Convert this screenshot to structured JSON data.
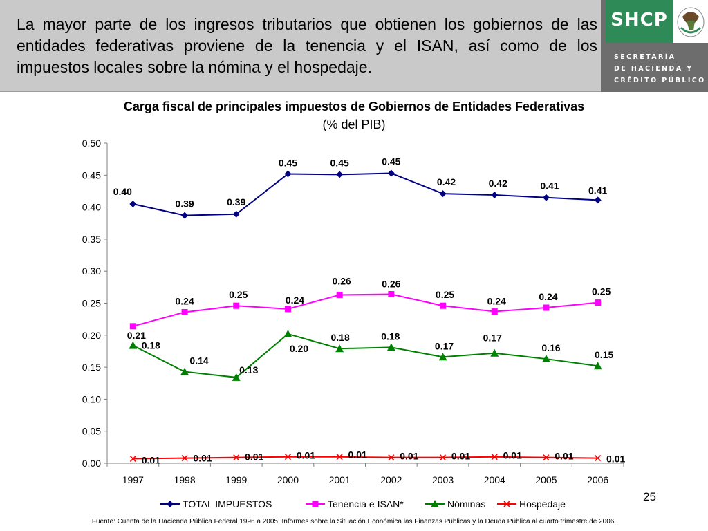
{
  "banner": {
    "text": "La mayor parte de los ingresos tributarios que obtienen los gobiernos de las entidades federativas proviene de la tenencia y el ISAN, así como de los impuestos locales sobre la nómina y el hospedaje."
  },
  "logo": {
    "acronym": "SHCP",
    "line1": "SECRETARÍA",
    "line2": "DE HACIENDA Y",
    "line3": "CRÉDITO PÚBLICO",
    "seal_icon": "mexican-coat-of-arms-icon",
    "green": "#2e8b57"
  },
  "page_number": "25",
  "source_note": "Fuente: Cuenta de la Hacienda Pública Federal 1996 a 2005;  Informes sobre la Situación Económica las Finanzas Públicas y la Deuda Pública al cuarto trimestre de 2006.",
  "chart_data": {
    "type": "line",
    "title": "Carga fiscal de principales impuestos de Gobiernos de Entidades Federativas",
    "subtitle": "(% del PIB)",
    "categories": [
      "1997",
      "1998",
      "1999",
      "2000",
      "2001",
      "2002",
      "2003",
      "2004",
      "2005",
      "2006"
    ],
    "ylim": [
      0,
      0.5
    ],
    "yticks": [
      "0.00",
      "0.05",
      "0.10",
      "0.15",
      "0.20",
      "0.25",
      "0.30",
      "0.35",
      "0.40",
      "0.45",
      "0.50"
    ],
    "legend_position": "bottom",
    "series": [
      {
        "name": "TOTAL IMPUESTOS",
        "color": "#000080",
        "marker": "diamond",
        "values": [
          0.405,
          0.387,
          0.389,
          0.452,
          0.451,
          0.453,
          0.421,
          0.419,
          0.415,
          0.411
        ],
        "labels": [
          "0.40",
          "0.39",
          "0.39",
          "0.45",
          "0.45",
          "0.45",
          "0.42",
          "0.42",
          "0.41",
          "0.41"
        ]
      },
      {
        "name": "Tenencia e ISAN*",
        "color": "#ff00ff",
        "marker": "square",
        "values": [
          0.214,
          0.236,
          0.246,
          0.241,
          0.263,
          0.264,
          0.246,
          0.237,
          0.243,
          0.251
        ],
        "labels": [
          "0.21",
          "0.24",
          "0.25",
          "0.24",
          "0.26",
          "0.26",
          "0.25",
          "0.24",
          "0.24",
          "0.25"
        ]
      },
      {
        "name": "Nóminas",
        "color": "#008000",
        "marker": "triangle",
        "values": [
          0.184,
          0.143,
          0.134,
          0.202,
          0.179,
          0.181,
          0.166,
          0.172,
          0.163,
          0.152
        ],
        "labels": [
          "0.18",
          "0.14",
          "0.13",
          "0.20",
          "0.18",
          "0.18",
          "0.17",
          "0.17",
          "0.16",
          "0.15"
        ]
      },
      {
        "name": "Hospedaje",
        "color": "#ff0000",
        "marker": "x",
        "values": [
          0.007,
          0.008,
          0.009,
          0.01,
          0.01,
          0.009,
          0.009,
          0.01,
          0.009,
          0.008
        ],
        "labels": [
          "0.01",
          "0.01",
          "0.01",
          "0.01",
          "0.01",
          "0.01",
          "0.01",
          "0.01",
          "0.01",
          "0.01"
        ]
      }
    ]
  }
}
